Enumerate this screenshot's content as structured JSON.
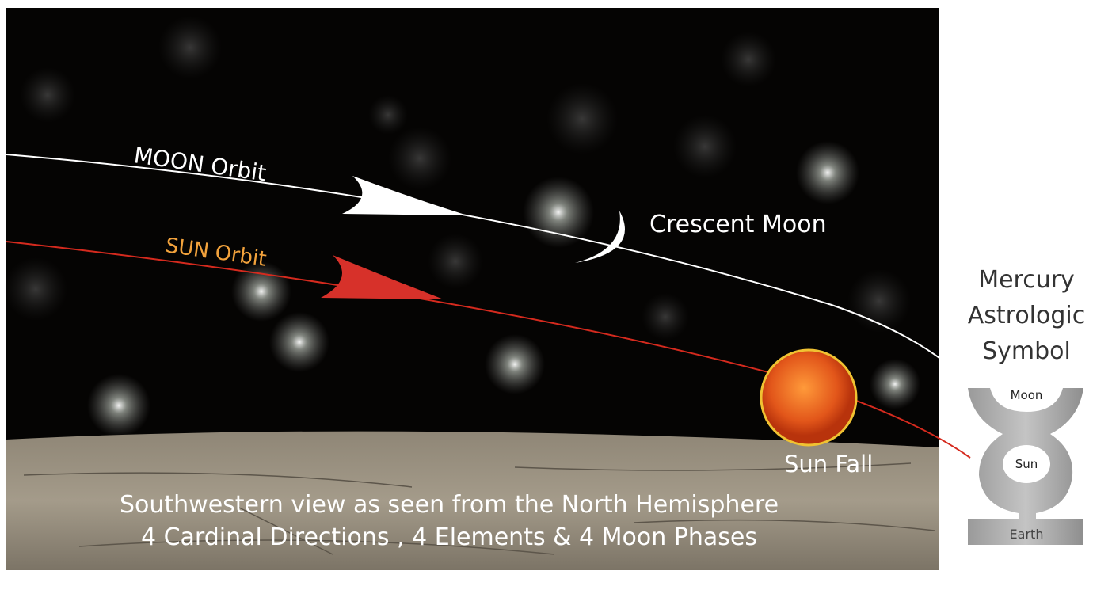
{
  "labels": {
    "moon_orbit": "MOON Orbit",
    "sun_orbit": "SUN Orbit",
    "crescent_moon": "Crescent Moon",
    "sun_fall": "Sun Fall"
  },
  "symbol": {
    "title": [
      "Mercury",
      "Astrologic",
      "Symbol"
    ],
    "moon": "Moon",
    "sun": "Sun",
    "earth": "Earth"
  },
  "caption": [
    "Southwestern view as seen from the North Hemisphere",
    "4 Cardinal Directions , 4 Elements & 4 Moon Phases"
  ]
}
